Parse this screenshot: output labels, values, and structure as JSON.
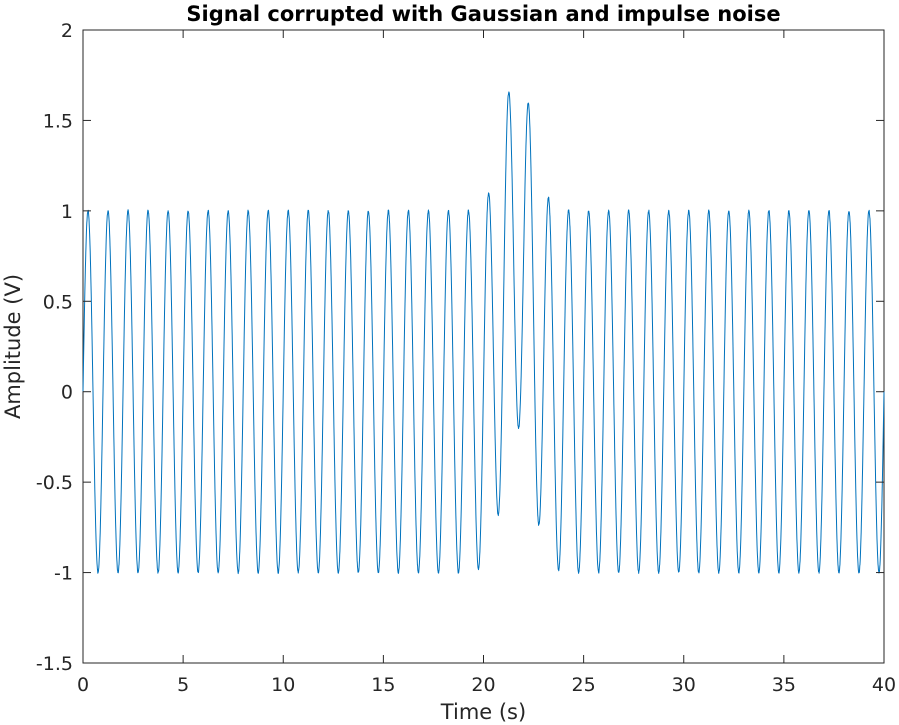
{
  "chart_data": {
    "type": "line",
    "title": "Signal corrupted with Gaussian and impulse noise",
    "xlabel": "Time (s)",
    "ylabel": "Amplitude (V)",
    "xlim": [
      0,
      40
    ],
    "ylim": [
      -1.5,
      2
    ],
    "xticks": [
      0,
      5,
      10,
      15,
      20,
      25,
      30,
      35,
      40
    ],
    "xtick_labels": [
      "0",
      "5",
      "10",
      "15",
      "20",
      "25",
      "30",
      "35",
      "40"
    ],
    "yticks": [
      -1.5,
      -1,
      -0.5,
      0,
      0.5,
      1,
      1.5,
      2
    ],
    "ytick_labels": [
      "-1.5",
      "-1",
      "-0.5",
      "0",
      "0.5",
      "1",
      "1.5",
      "2"
    ],
    "grid": false,
    "series_color": "#0072BD",
    "series": [
      {
        "model": "sinusoid with localized impulse disturbance",
        "amplitude": 1.0,
        "frequency_hz": 1.0,
        "impulse_center_s": 21.7,
        "impulse_amplitude": 0.8,
        "impulse_width_s": 1.0,
        "peaks": [
          {
            "x": 19.7,
            "y": -1.17
          },
          {
            "x": 20.2,
            "y": 0.87
          },
          {
            "x": 20.7,
            "y": -0.92
          },
          {
            "x": 21.2,
            "y": 1.46
          },
          {
            "x": 21.7,
            "y": -0.27
          },
          {
            "x": 22.2,
            "y": 1.79
          },
          {
            "x": 22.7,
            "y": -0.45
          },
          {
            "x": 23.2,
            "y": 1.22
          },
          {
            "x": 23.7,
            "y": -1.09
          },
          {
            "x": 24.2,
            "y": 0.84
          }
        ]
      }
    ]
  }
}
